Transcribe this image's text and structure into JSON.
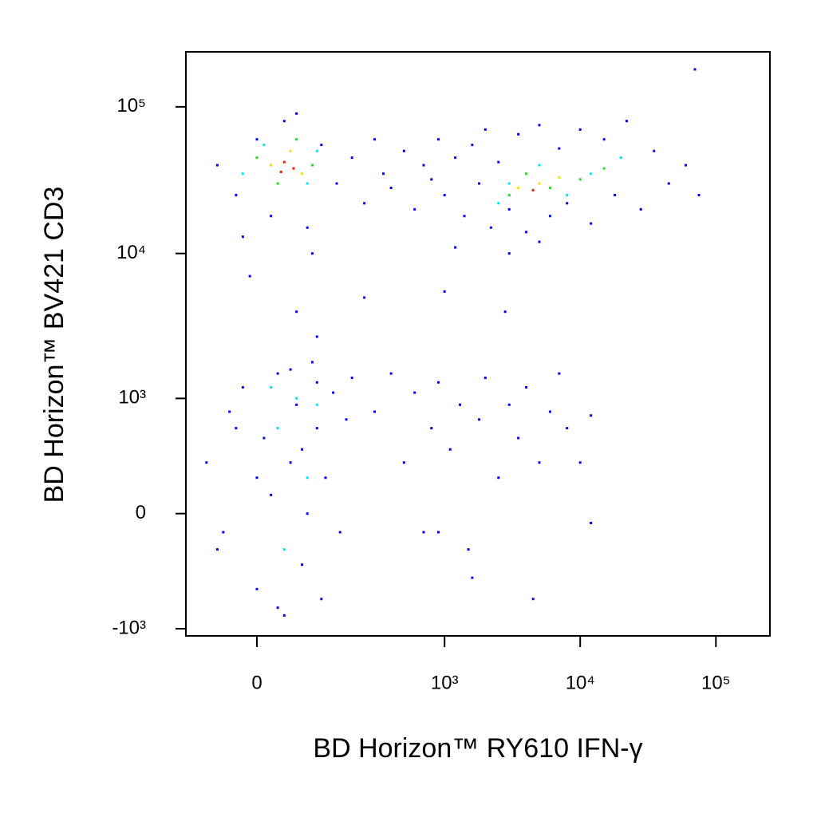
{
  "chart_data": {
    "type": "scatter",
    "x_label": "BD Horizon™ RY610 IFN-γ",
    "y_label": "BD Horizon™ BV421 CD3",
    "xscale": "asinh",
    "yscale": "asinh",
    "xlim": [
      -126,
      250000
    ],
    "ylim": [
      -1125,
      237000
    ],
    "xticks": [
      0,
      {
        "value": 1000,
        "label": "10³"
      },
      {
        "value": 10000,
        "label": "10⁴"
      },
      {
        "value": 100000,
        "label": "10⁵"
      }
    ],
    "yticks": [
      {
        "value": -1000,
        "label": "-10³"
      },
      0,
      {
        "value": 1000,
        "label": "10³"
      },
      {
        "value": 10000,
        "label": "10⁴"
      },
      {
        "value": 100000,
        "label": "10⁵"
      }
    ],
    "series": [
      {
        "color": "#0000ff",
        "x": [
          -60,
          -30,
          0,
          20,
          40,
          80,
          110,
          150,
          200,
          250,
          300,
          350,
          400,
          500,
          600,
          700,
          800,
          900,
          1000,
          1200,
          1400,
          1600,
          1800,
          2000,
          2200,
          2500,
          3000,
          3500,
          4000,
          5000,
          6000,
          7000,
          8000,
          10000,
          12000,
          15000,
          18000,
          22000,
          28000,
          35000,
          45000,
          60000,
          75000,
          -20,
          60,
          90,
          3000,
          5000,
          1200,
          -10,
          60,
          100,
          1000,
          2800,
          250,
          70000,
          -80,
          -60,
          -40,
          -20,
          0,
          10,
          20,
          30,
          40,
          50,
          60,
          70,
          80,
          90,
          100,
          110,
          120,
          140,
          160,
          180,
          200,
          30,
          50,
          -50,
          70,
          100,
          0,
          -30,
          300,
          400,
          500,
          600,
          700,
          800,
          900,
          1100,
          1300,
          1500,
          1800,
          2000,
          2500,
          3000,
          3500,
          4000,
          5000,
          6000,
          8000,
          10000,
          12000,
          7000,
          4500,
          1600,
          900,
          12000
        ],
        "values": [
          40000,
          25000,
          60000,
          18000,
          80000,
          15000,
          55000,
          30000,
          45000,
          22000,
          60000,
          35000,
          28000,
          50000,
          20000,
          40000,
          32000,
          60000,
          25000,
          45000,
          18000,
          55000,
          30000,
          70000,
          15000,
          42000,
          20000,
          65000,
          14000,
          75000,
          18000,
          52000,
          22000,
          70000,
          16000,
          60000,
          25000,
          80000,
          20000,
          50000,
          30000,
          40000,
          25000,
          13000,
          90000,
          10000,
          10000,
          12000,
          11000,
          7000,
          4000,
          2700,
          5500,
          4000,
          5000,
          180000,
          300,
          -200,
          800,
          1200,
          -500,
          500,
          100,
          1500,
          -800,
          300,
          900,
          -300,
          0,
          1800,
          600,
          -600,
          200,
          1100,
          -100,
          700,
          1400,
          -700,
          1600,
          -100,
          400,
          1300,
          200,
          600,
          800,
          1500,
          300,
          1100,
          -100,
          600,
          1300,
          400,
          900,
          -200,
          700,
          1400,
          200,
          900,
          500,
          1200,
          300,
          800,
          600,
          300,
          750,
          1500,
          -600,
          -400,
          -100,
          -50
        ]
      },
      {
        "color": "#00e5ff",
        "x": [
          -20,
          10,
          80,
          100,
          3000,
          5000,
          8000,
          12000,
          20000,
          2500,
          30,
          60,
          80,
          40,
          100,
          20
        ],
        "values": [
          35000,
          55000,
          30000,
          50000,
          30000,
          40000,
          25000,
          35000,
          45000,
          22000,
          600,
          1000,
          200,
          -200,
          900,
          1200
        ]
      },
      {
        "color": "#22dd22",
        "x": [
          0,
          30,
          90,
          60,
          4000,
          6000,
          3000,
          10000,
          15000
        ],
        "values": [
          45000,
          30000,
          40000,
          60000,
          35000,
          28000,
          25000,
          32000,
          38000
        ]
      },
      {
        "color": "#ffdd00",
        "x": [
          20,
          70,
          50,
          5000,
          3500,
          7000
        ],
        "values": [
          40000,
          35000,
          50000,
          30000,
          28000,
          33000
        ]
      },
      {
        "color": "#ff1a00",
        "x": [
          40,
          55,
          35,
          4500
        ],
        "values": [
          42000,
          38000,
          36000,
          27000
        ]
      }
    ]
  }
}
